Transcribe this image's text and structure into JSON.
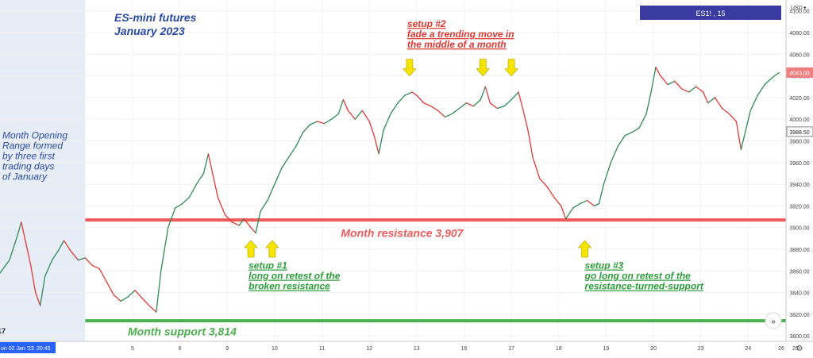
{
  "symbol_label": "ES1! , 15",
  "currency": "USD",
  "chart_data": {
    "type": "line",
    "title": "ES-mini futures",
    "subtitle": "January 2023",
    "ylim": [
      3795,
      4110
    ],
    "yticks": [
      3800,
      3820,
      3840,
      3860,
      3880,
      3900,
      3920,
      3940,
      3960,
      3980,
      4000,
      4020,
      4040,
      4060,
      4080,
      4100
    ],
    "ytick_labels": [
      "3800.00",
      "3820.00",
      "3840.00",
      "3860.00",
      "3880.00",
      "3900.00",
      "3920.00",
      "3940.00",
      "3960.00",
      "3980.00",
      "4000.00",
      "4020.00",
      "4040.00",
      "4060.00",
      "4080.00",
      "4100.00"
    ],
    "price_tags": [
      {
        "value": 4043.0,
        "label": "4043.00",
        "color": "#f08080"
      },
      {
        "value": 3988.5,
        "label": "3988.50",
        "color": "#ffffff"
      }
    ],
    "xlim": [
      -0.8,
      15.8
    ],
    "xticks": [
      {
        "x": 2,
        "label": "5"
      },
      {
        "x": 3,
        "label": "6"
      },
      {
        "x": 4,
        "label": "9"
      },
      {
        "x": 5,
        "label": "10"
      },
      {
        "x": 6,
        "label": "11"
      },
      {
        "x": 7,
        "label": "12"
      },
      {
        "x": 8,
        "label": "13"
      },
      {
        "x": 9,
        "label": "16"
      },
      {
        "x": 10,
        "label": "17"
      },
      {
        "x": 11,
        "label": "18"
      },
      {
        "x": 12,
        "label": "19"
      },
      {
        "x": 13,
        "label": "20"
      },
      {
        "x": 14,
        "label": "23"
      },
      {
        "x": 15,
        "label": "24"
      },
      {
        "x": 16,
        "label": "25"
      }
    ],
    "xtick_partial": [
      {
        "x": 0,
        "label": "4"
      },
      {
        "x": 16.0,
        "label": "26"
      }
    ],
    "cursor_date_label": "on 02 Jan '23",
    "cursor_time_label": "20:45",
    "opening_range": {
      "x_start": -0.8,
      "x_end": 1.0
    },
    "price_series": [
      [
        -0.8,
        3858
      ],
      [
        -0.6,
        3870
      ],
      [
        -0.45,
        3890
      ],
      [
        -0.35,
        3905
      ],
      [
        -0.25,
        3885
      ],
      [
        -0.15,
        3865
      ],
      [
        -0.05,
        3840
      ],
      [
        0.05,
        3828
      ],
      [
        0.15,
        3855
      ],
      [
        0.3,
        3870
      ],
      [
        0.45,
        3880
      ],
      [
        0.55,
        3888
      ],
      [
        0.7,
        3878
      ],
      [
        0.85,
        3870
      ],
      [
        1.0,
        3872
      ],
      [
        1.15,
        3865
      ],
      [
        1.3,
        3862
      ],
      [
        1.45,
        3850
      ],
      [
        1.6,
        3838
      ],
      [
        1.75,
        3832
      ],
      [
        1.9,
        3836
      ],
      [
        2.05,
        3842
      ],
      [
        2.2,
        3835
      ],
      [
        2.35,
        3828
      ],
      [
        2.5,
        3822
      ],
      [
        2.6,
        3860
      ],
      [
        2.75,
        3900
      ],
      [
        2.9,
        3918
      ],
      [
        3.05,
        3922
      ],
      [
        3.2,
        3928
      ],
      [
        3.35,
        3940
      ],
      [
        3.5,
        3950
      ],
      [
        3.6,
        3968
      ],
      [
        3.7,
        3948
      ],
      [
        3.8,
        3928
      ],
      [
        3.95,
        3912
      ],
      [
        4.1,
        3905
      ],
      [
        4.25,
        3902
      ],
      [
        4.35,
        3908
      ],
      [
        4.5,
        3900
      ],
      [
        4.6,
        3895
      ],
      [
        4.7,
        3915
      ],
      [
        4.85,
        3925
      ],
      [
        5.0,
        3940
      ],
      [
        5.15,
        3955
      ],
      [
        5.3,
        3965
      ],
      [
        5.45,
        3975
      ],
      [
        5.6,
        3988
      ],
      [
        5.75,
        3995
      ],
      [
        5.9,
        3998
      ],
      [
        6.05,
        3996
      ],
      [
        6.2,
        4000
      ],
      [
        6.35,
        4005
      ],
      [
        6.45,
        4018
      ],
      [
        6.55,
        4008
      ],
      [
        6.7,
        4000
      ],
      [
        6.85,
        4008
      ],
      [
        7.0,
        3998
      ],
      [
        7.1,
        3985
      ],
      [
        7.2,
        3968
      ],
      [
        7.3,
        3990
      ],
      [
        7.45,
        4005
      ],
      [
        7.6,
        4015
      ],
      [
        7.75,
        4022
      ],
      [
        7.9,
        4025
      ],
      [
        8.0,
        4022
      ],
      [
        8.15,
        4015
      ],
      [
        8.3,
        4012
      ],
      [
        8.45,
        4008
      ],
      [
        8.6,
        4002
      ],
      [
        8.75,
        4005
      ],
      [
        8.9,
        4010
      ],
      [
        9.05,
        4015
      ],
      [
        9.2,
        4012
      ],
      [
        9.35,
        4018
      ],
      [
        9.45,
        4030
      ],
      [
        9.55,
        4015
      ],
      [
        9.7,
        4010
      ],
      [
        9.85,
        4012
      ],
      [
        10.0,
        4018
      ],
      [
        10.15,
        4025
      ],
      [
        10.25,
        4008
      ],
      [
        10.35,
        3990
      ],
      [
        10.45,
        3965
      ],
      [
        10.6,
        3945
      ],
      [
        10.75,
        3938
      ],
      [
        10.9,
        3928
      ],
      [
        11.05,
        3920
      ],
      [
        11.15,
        3908
      ],
      [
        11.3,
        3918
      ],
      [
        11.45,
        3922
      ],
      [
        11.6,
        3925
      ],
      [
        11.75,
        3920
      ],
      [
        11.85,
        3922
      ],
      [
        11.95,
        3940
      ],
      [
        12.1,
        3960
      ],
      [
        12.25,
        3975
      ],
      [
        12.4,
        3985
      ],
      [
        12.55,
        3988
      ],
      [
        12.7,
        3992
      ],
      [
        12.85,
        4005
      ],
      [
        12.95,
        4025
      ],
      [
        13.05,
        4048
      ],
      [
        13.15,
        4040
      ],
      [
        13.3,
        4032
      ],
      [
        13.45,
        4035
      ],
      [
        13.6,
        4028
      ],
      [
        13.75,
        4025
      ],
      [
        13.9,
        4030
      ],
      [
        14.05,
        4025
      ],
      [
        14.15,
        4015
      ],
      [
        14.3,
        4020
      ],
      [
        14.45,
        4010
      ],
      [
        14.6,
        4005
      ],
      [
        14.75,
        3998
      ],
      [
        14.85,
        3972
      ],
      [
        14.95,
        3990
      ],
      [
        15.05,
        4008
      ],
      [
        15.2,
        4022
      ],
      [
        15.35,
        4032
      ],
      [
        15.5,
        4038
      ],
      [
        15.65,
        4043
      ]
    ],
    "levels": [
      {
        "label": "Month resistance 3,907",
        "value": 3907,
        "color": "#f05a5a",
        "label_x": 6.4,
        "label_value": 3895
      },
      {
        "label": "Month support 3,814",
        "value": 3814,
        "color": "#4caf50",
        "label_x": 1.9,
        "label_value": 3804
      }
    ],
    "arrows": [
      {
        "group": "setup1",
        "x": 4.5,
        "value": 3880,
        "direction": "up"
      },
      {
        "group": "setup1",
        "x": 4.95,
        "value": 3880,
        "direction": "up"
      },
      {
        "group": "setup2",
        "x": 7.85,
        "value": 4048,
        "direction": "down"
      },
      {
        "group": "setup2",
        "x": 9.4,
        "value": 4048,
        "direction": "down"
      },
      {
        "group": "setup2",
        "x": 10.0,
        "value": 4048,
        "direction": "down"
      },
      {
        "group": "setup3",
        "x": 11.55,
        "value": 3880,
        "direction": "up"
      }
    ],
    "annotations": [
      {
        "lines": [
          "setup #1",
          "long on retest of the",
          "broken resistance"
        ],
        "color": "#2a9d3a",
        "x": 4.45,
        "value": 3862,
        "underline": true
      },
      {
        "lines": [
          "setup #2",
          "fade a trending move in",
          "the middle of a month"
        ],
        "color": "#e0362f",
        "x": 7.8,
        "value": 4085,
        "underline": true
      },
      {
        "lines": [
          "setup #3",
          "go long on retest of the",
          "resistance-turned-support"
        ],
        "color": "#2a9d3a",
        "x": 11.55,
        "value": 3862,
        "underline": true
      },
      {
        "lines": [
          "Month Opening",
          "Range formed",
          "by three first",
          "trading days",
          "of January"
        ],
        "color": "#2a4aa8",
        "x": -0.75,
        "value": 3982,
        "underline": false
      }
    ]
  }
}
